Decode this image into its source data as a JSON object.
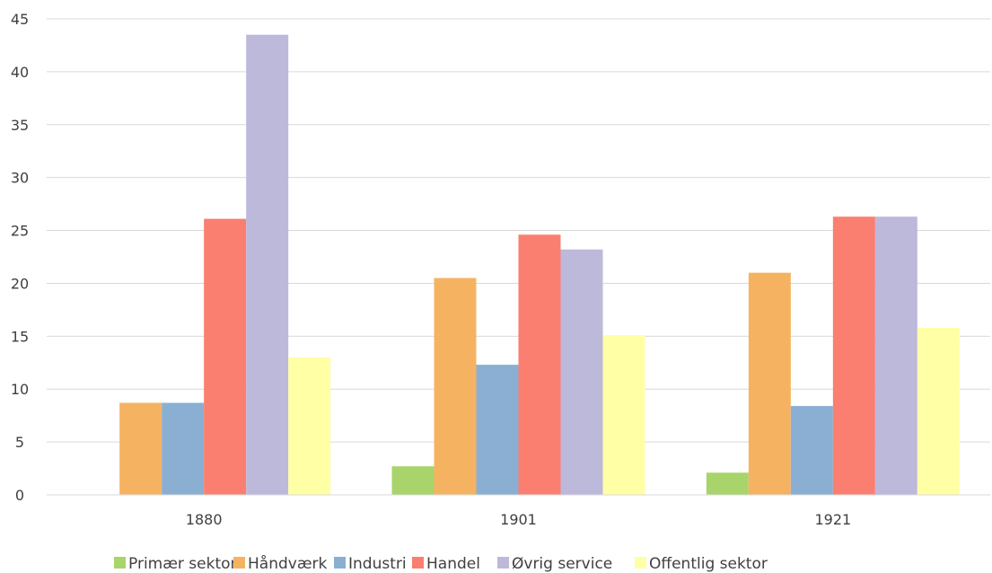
{
  "chart_data": {
    "type": "bar",
    "categories": [
      "1880",
      "1901",
      "1921"
    ],
    "series": [
      {
        "name": "Primær sektor",
        "color": "#a9d46b",
        "values": [
          0,
          2.7,
          2.1
        ]
      },
      {
        "name": "Håndværk",
        "color": "#f5b362",
        "values": [
          8.7,
          20.5,
          21.0
        ]
      },
      {
        "name": "Industri",
        "color": "#8aafd3",
        "values": [
          8.7,
          12.3,
          8.4
        ]
      },
      {
        "name": "Handel",
        "color": "#fa7f70",
        "values": [
          26.1,
          24.6,
          26.3
        ]
      },
      {
        "name": "Øvrig service",
        "color": "#bdb9db",
        "values": [
          43.5,
          23.2,
          26.3
        ]
      },
      {
        "name": "Offentlig sektor",
        "color": "#ffffa6",
        "values": [
          13.0,
          15.1,
          15.8
        ]
      }
    ],
    "ylim": [
      0,
      45
    ],
    "yticks": [
      0,
      5,
      10,
      15,
      20,
      25,
      30,
      35,
      40,
      45
    ],
    "grid": true,
    "legend_position": "bottom",
    "title": "",
    "xlabel": "",
    "ylabel": ""
  }
}
